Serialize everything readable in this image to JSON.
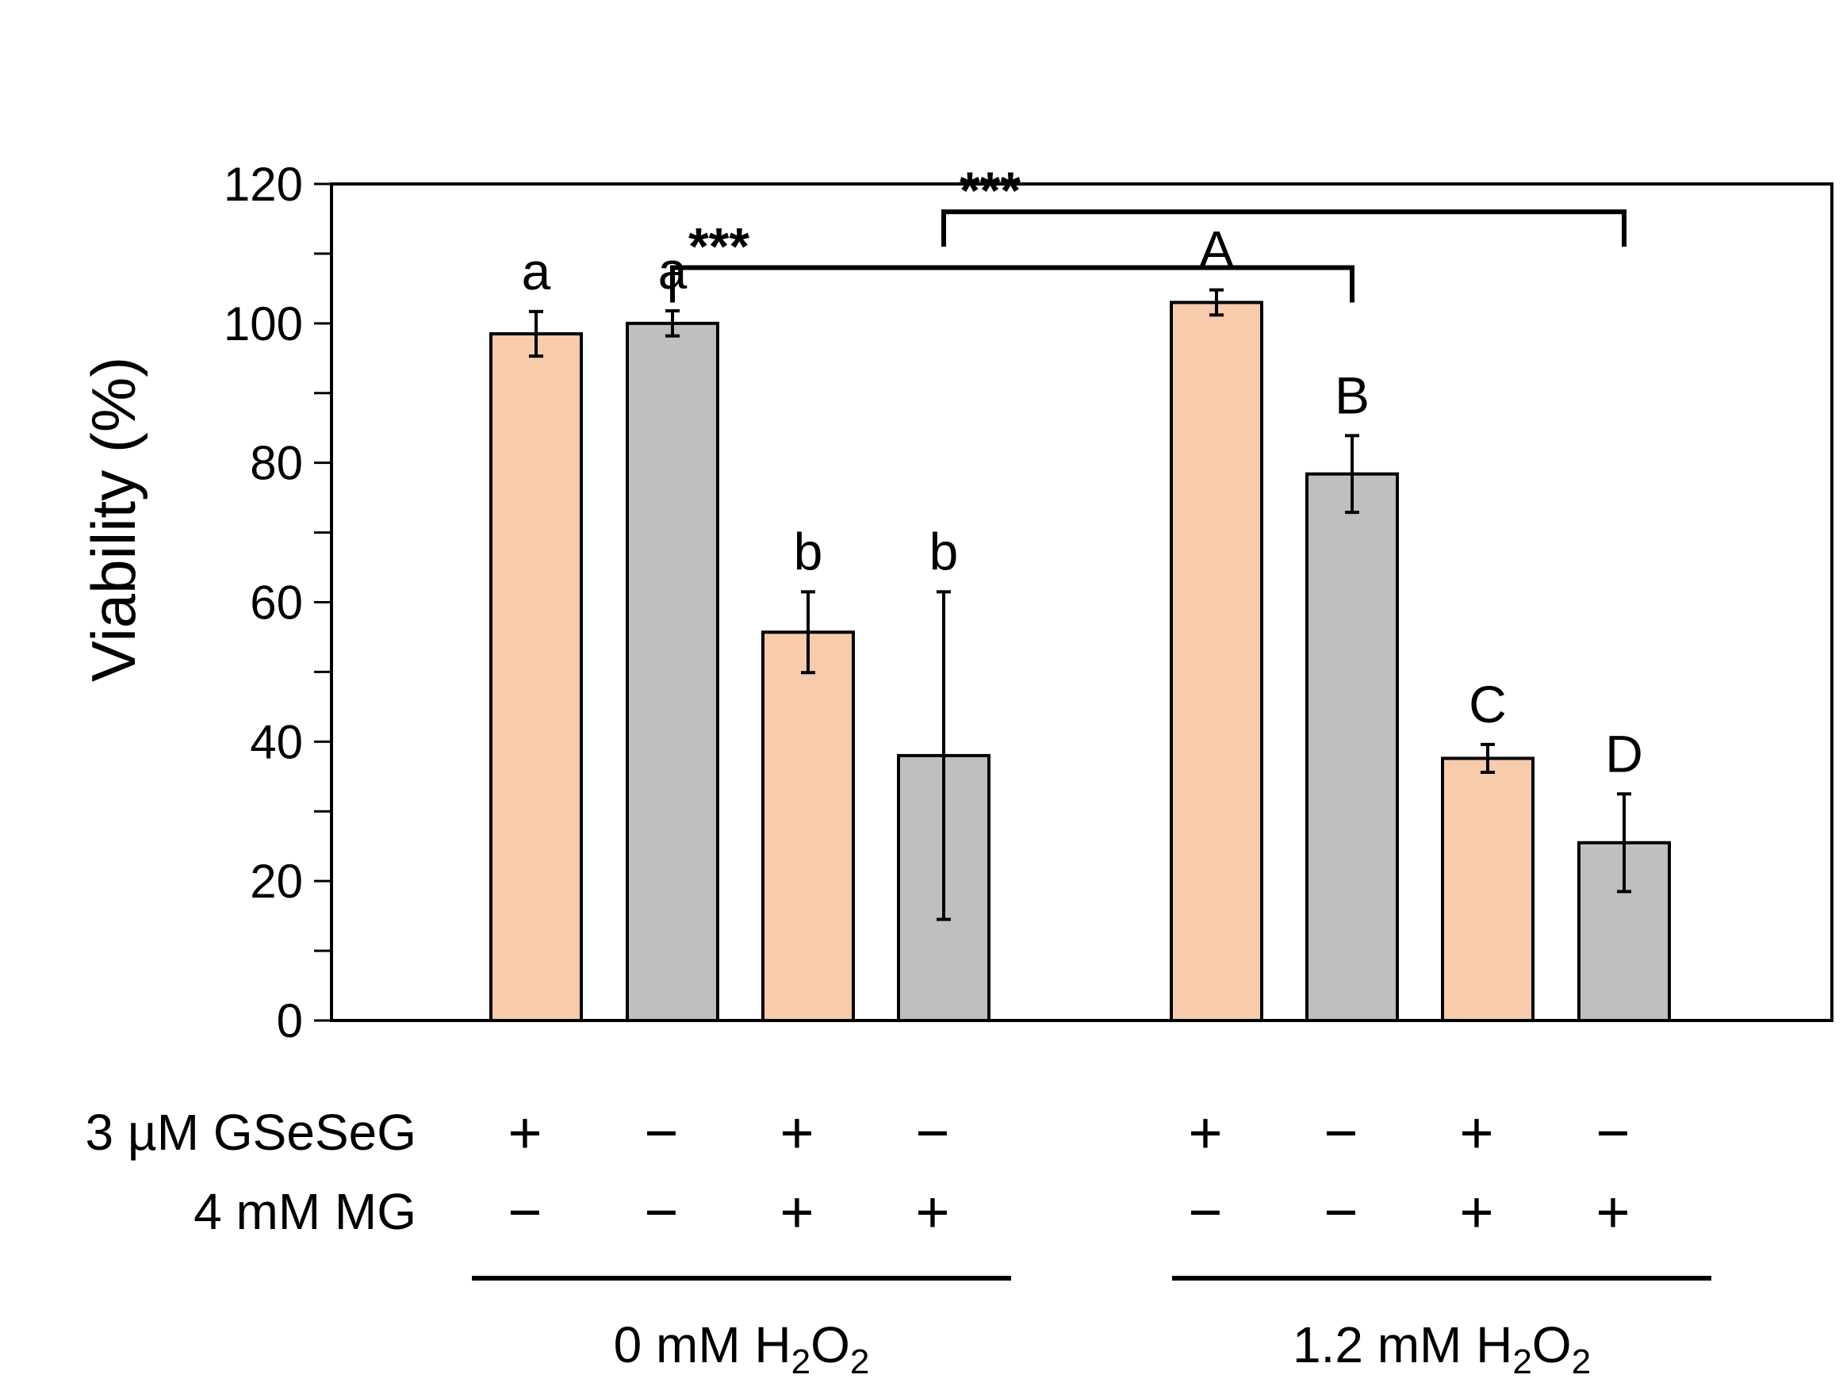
{
  "chart_data": {
    "type": "bar",
    "title": "",
    "xlabel": "",
    "ylabel": "Viability (%)",
    "ylim": [
      0,
      120
    ],
    "yticks": [
      0,
      20,
      40,
      60,
      80,
      100,
      120
    ],
    "grid": false,
    "legend": "none",
    "colors": {
      "gsesg": "#f8cbad",
      "control": "#bfbfbf",
      "stroke": "#000000"
    },
    "bars": [
      {
        "group": "0 mM H2O2",
        "gseseg": "+",
        "mg": "−",
        "value": 98.5,
        "error": 3.2,
        "letter": "a",
        "color": "#f8cbad"
      },
      {
        "group": "0 mM H2O2",
        "gseseg": "−",
        "mg": "−",
        "value": 100.0,
        "error": 1.8,
        "letter": "a",
        "color": "#bfbfbf"
      },
      {
        "group": "0 mM H2O2",
        "gseseg": "+",
        "mg": "+",
        "value": 55.7,
        "error": 5.8,
        "letter": "b",
        "color": "#f8cbad"
      },
      {
        "group": "0 mM H2O2",
        "gseseg": "−",
        "mg": "+",
        "value": 38.0,
        "error": 23.5,
        "letter": "b",
        "color": "#bfbfbf"
      },
      {
        "group": "1.2 mM H2O2",
        "gseseg": "+",
        "mg": "−",
        "value": 103.0,
        "error": 1.8,
        "letter": "A",
        "color": "#f8cbad"
      },
      {
        "group": "1.2 mM H2O2",
        "gseseg": "−",
        "mg": "−",
        "value": 78.4,
        "error": 5.5,
        "letter": "B",
        "color": "#bfbfbf"
      },
      {
        "group": "1.2 mM H2O2",
        "gseseg": "+",
        "mg": "+",
        "value": 37.6,
        "error": 2.0,
        "letter": "C",
        "color": "#f8cbad"
      },
      {
        "group": "1.2 mM H2O2",
        "gseseg": "−",
        "mg": "+",
        "value": 25.5,
        "error": 7.0,
        "letter": "D",
        "color": "#bfbfbf"
      }
    ],
    "row_labels": {
      "gseseg": "3 µM GSeSeG",
      "mg": "4 mM MG"
    },
    "groups": [
      {
        "label": "0 mM H",
        "sub1": "2",
        "mid": "O",
        "sub2": "2"
      },
      {
        "label": "1.2 mM H",
        "sub1": "2",
        "mid": "O",
        "sub2": "2"
      }
    ],
    "comparisons": [
      {
        "from_bar": 1,
        "to_bar": 5,
        "label": "***",
        "level": 108
      },
      {
        "from_bar": 3,
        "to_bar": 7,
        "label": "***",
        "level": 116
      }
    ]
  }
}
